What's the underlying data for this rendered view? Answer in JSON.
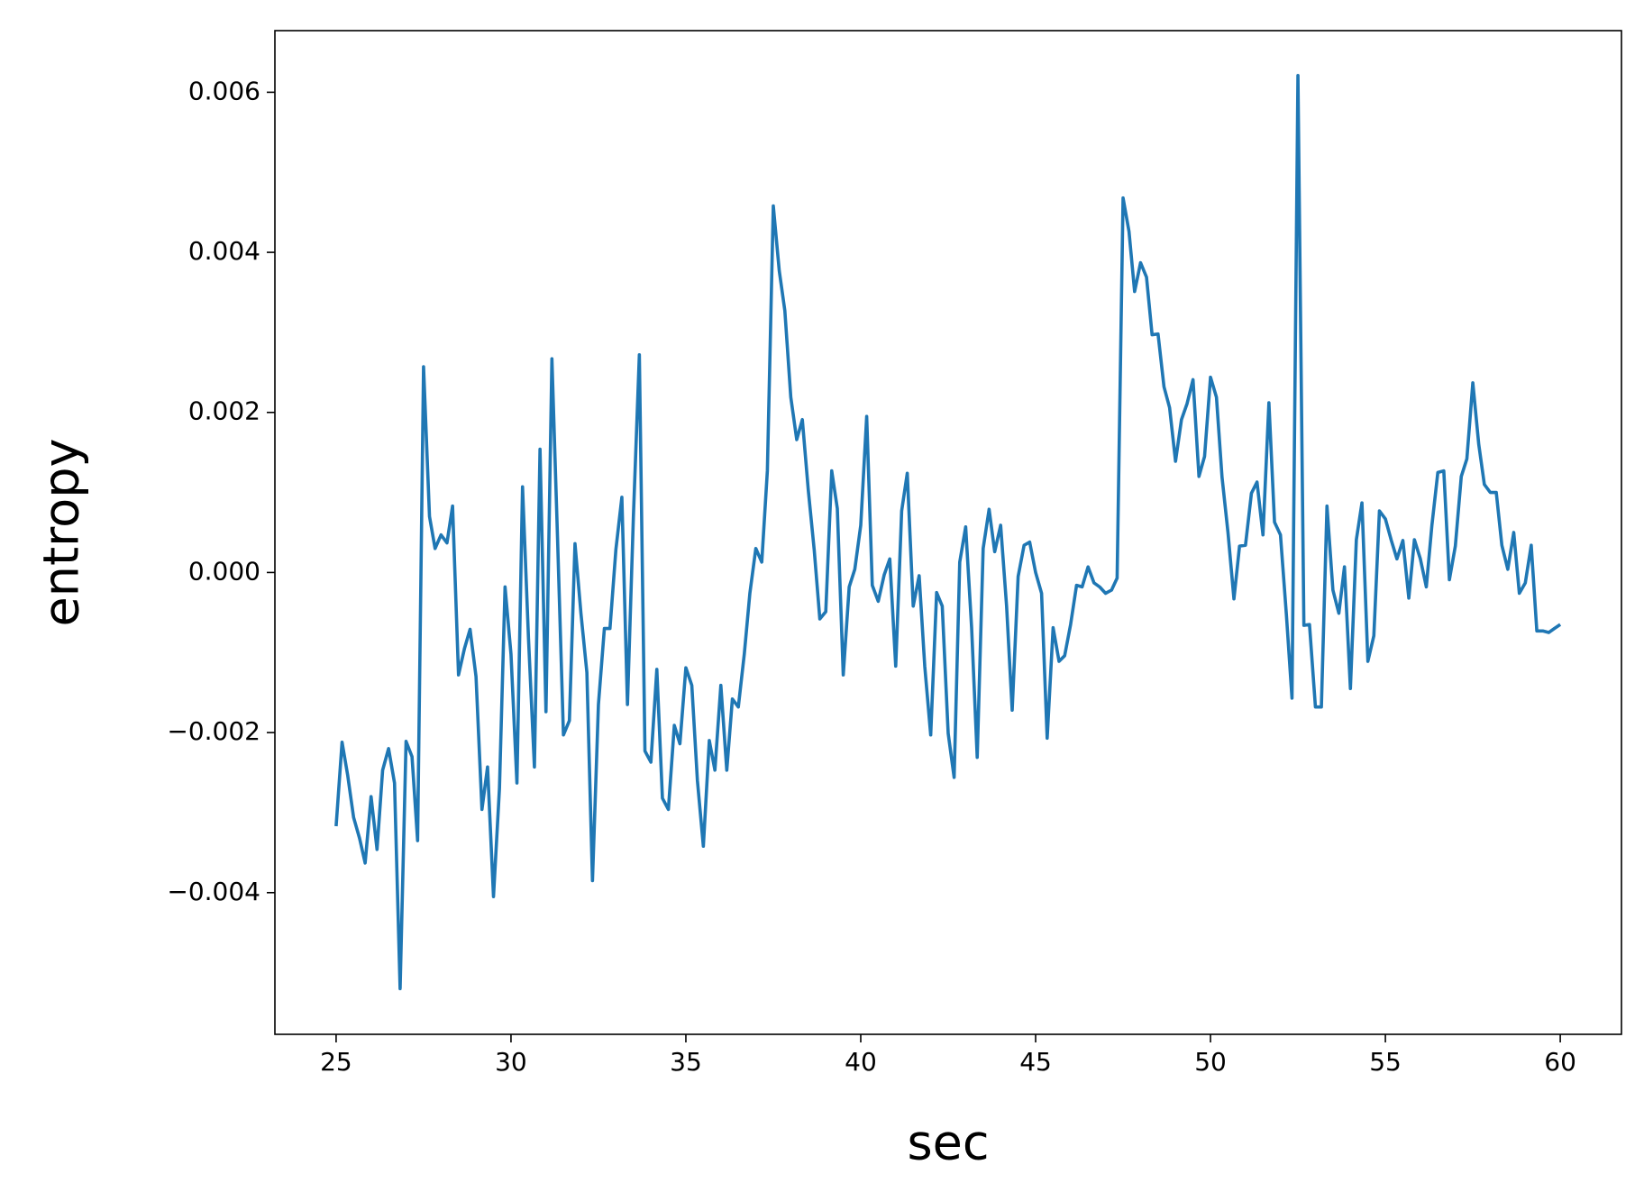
{
  "chart_data": {
    "type": "line",
    "xlabel": "sec",
    "ylabel": "entropy",
    "x": [
      25,
      25.17,
      25.33,
      25.5,
      25.67,
      25.83,
      26,
      26.17,
      26.33,
      26.5,
      26.67,
      26.83,
      27,
      27.17,
      27.33,
      27.5,
      27.67,
      27.83,
      28,
      28.17,
      28.33,
      28.5,
      28.67,
      28.83,
      29,
      29.17,
      29.33,
      29.5,
      29.67,
      29.83,
      30,
      30.17,
      30.33,
      30.5,
      30.67,
      30.83,
      31,
      31.17,
      31.33,
      31.5,
      31.67,
      31.83,
      32,
      32.17,
      32.33,
      32.5,
      32.67,
      32.83,
      33,
      33.17,
      33.33,
      33.5,
      33.67,
      33.83,
      34,
      34.17,
      34.33,
      34.5,
      34.67,
      34.83,
      35,
      35.17,
      35.33,
      35.5,
      35.67,
      35.83,
      36,
      36.17,
      36.33,
      36.5,
      36.67,
      36.83,
      37,
      37.17,
      37.33,
      37.5,
      37.67,
      37.83,
      38,
      38.17,
      38.33,
      38.5,
      38.67,
      38.83,
      39,
      39.17,
      39.33,
      39.5,
      39.67,
      39.83,
      40,
      40.17,
      40.33,
      40.5,
      40.67,
      40.83,
      41,
      41.17,
      41.33,
      41.5,
      41.67,
      41.83,
      42,
      42.17,
      42.33,
      42.5,
      42.67,
      42.83,
      43,
      43.17,
      43.33,
      43.5,
      43.67,
      43.83,
      44,
      44.17,
      44.33,
      44.5,
      44.67,
      44.83,
      45,
      45.17,
      45.33,
      45.5,
      45.67,
      45.83,
      46,
      46.17,
      46.33,
      46.5,
      46.67,
      46.83,
      47,
      47.17,
      47.33,
      47.5,
      47.67,
      47.83,
      48,
      48.17,
      48.33,
      48.5,
      48.67,
      48.83,
      49,
      49.17,
      49.33,
      49.5,
      49.67,
      49.83,
      50,
      50.17,
      50.33,
      50.5,
      50.67,
      50.83,
      51,
      51.17,
      51.33,
      51.5,
      51.67,
      51.83,
      52,
      52.17,
      52.33,
      52.5,
      52.67,
      52.83,
      53,
      53.17,
      53.33,
      53.5,
      53.67,
      53.83,
      54,
      54.17,
      54.33,
      54.5,
      54.67,
      54.83,
      55,
      55.17,
      55.33,
      55.5,
      55.67,
      55.83,
      56,
      56.17,
      56.33,
      56.5,
      56.67,
      56.83,
      57,
      57.17,
      57.33,
      57.5,
      57.67,
      57.83,
      58,
      58.17,
      58.33,
      58.5,
      58.67,
      58.83,
      59,
      59.17,
      59.33,
      59.5,
      59.67,
      59.83,
      60
    ],
    "series": [
      {
        "color": "#1f77b4",
        "values": [
          -0.00317,
          -0.00212,
          -0.00253,
          -0.00306,
          -0.00332,
          -0.00363,
          -0.0028,
          -0.00346,
          -0.00247,
          -0.0022,
          -0.00263,
          -0.0052,
          -0.00211,
          -0.0023,
          -0.00335,
          0.00257,
          0.0007,
          0.0003,
          0.00047,
          0.00037,
          0.00083,
          -0.00128,
          -0.00095,
          -0.00071,
          -0.0013,
          -0.00296,
          -0.00243,
          -0.00405,
          -0.0027,
          -0.00018,
          -0.00102,
          -0.00263,
          0.00107,
          -0.00082,
          -0.00243,
          0.00154,
          -0.00174,
          0.00267,
          0.00044,
          -0.00203,
          -0.00185,
          0.00036,
          -0.00051,
          -0.00125,
          -0.00385,
          -0.00165,
          -0.0007,
          -0.0007,
          0.00029,
          0.00094,
          -0.00165,
          0.0007,
          0.00272,
          -0.00223,
          -0.00237,
          -0.00121,
          -0.00282,
          -0.00296,
          -0.00191,
          -0.00214,
          -0.00119,
          -0.00141,
          -0.0026,
          -0.00342,
          -0.0021,
          -0.00247,
          -0.00141,
          -0.00247,
          -0.00158,
          -0.00168,
          -0.00102,
          -0.00026,
          0.0003,
          0.00013,
          0.00127,
          0.00458,
          0.00377,
          0.00327,
          0.00219,
          0.00166,
          0.00191,
          0.00103,
          0.00028,
          -0.00058,
          -0.00049,
          0.00127,
          0.0008,
          -0.00128,
          -0.00018,
          4e-05,
          0.00059,
          0.00195,
          -0.00016,
          -0.00036,
          -3e-05,
          0.00017,
          -0.00117,
          0.00077,
          0.00124,
          -0.00042,
          -4e-05,
          -0.00117,
          -0.00203,
          -0.00025,
          -0.00042,
          -0.00201,
          -0.00256,
          0.00013,
          0.00057,
          -0.00069,
          -0.00231,
          0.0003,
          0.00079,
          0.00026,
          0.00059,
          -0.00042,
          -0.00172,
          -5e-05,
          0.00034,
          0.00038,
          0,
          -0.00026,
          -0.00207,
          -0.00069,
          -0.00111,
          -0.00104,
          -0.00065,
          -0.00016,
          -0.00018,
          7e-05,
          -0.00013,
          -0.00018,
          -0.00026,
          -0.00022,
          -7e-05,
          0.00468,
          0.00426,
          0.00351,
          0.00387,
          0.00369,
          0.00297,
          0.00298,
          0.00232,
          0.00206,
          0.00139,
          0.00191,
          0.00211,
          0.00241,
          0.0012,
          0.00145,
          0.00244,
          0.00219,
          0.00119,
          0.0005,
          -0.00033,
          0.00033,
          0.00034,
          0.00099,
          0.00113,
          0.00047,
          0.00212,
          0.00063,
          0.00047,
          -0.00053,
          -0.00157,
          0.00621,
          -0.00066,
          -0.00065,
          -0.00168,
          -0.00168,
          0.00083,
          -0.00022,
          -0.00051,
          7e-05,
          -0.00145,
          0.00041,
          0.00087,
          -0.00111,
          -0.00079,
          0.00077,
          0.00067,
          0.0004,
          0.00017,
          0.0004,
          -0.00032,
          0.00041,
          0.00017,
          -0.00018,
          0.00059,
          0.00125,
          0.00127,
          -9e-05,
          0.00033,
          0.0012,
          0.00142,
          0.00237,
          0.0016,
          0.0011,
          0.001,
          0.001,
          0.00034,
          4e-05,
          0.0005,
          -0.00026,
          -0.00013,
          0.00034,
          -0.00073,
          -0.00073,
          -0.00075,
          -0.0007,
          -0.00065
        ]
      }
    ],
    "xlim": [
      23.25,
      61.75
    ],
    "ylim": [
      -0.00577,
      0.00677
    ],
    "xticks": [
      25,
      30,
      35,
      40,
      45,
      50,
      55,
      60
    ],
    "yticks": [
      {
        "value": -0.004,
        "label": "−0.004"
      },
      {
        "value": -0.002,
        "label": "−0.002"
      },
      {
        "value": 0,
        "label": "0.000"
      },
      0.002,
      0.004,
      0.006
    ],
    "grid": false
  }
}
